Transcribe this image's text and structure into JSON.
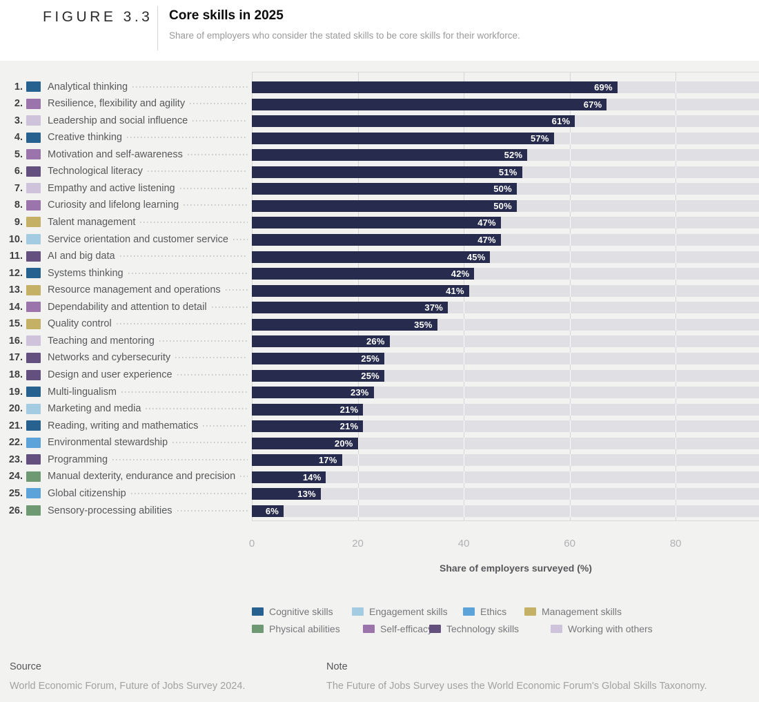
{
  "header": {
    "figure_label": "FIGURE 3.3",
    "title": "Core skills in 2025",
    "subtitle": "Share of employers who consider the stated skills to be core skills for their workforce."
  },
  "chart_data": {
    "type": "bar",
    "orientation": "horizontal",
    "title": "Core skills in 2025",
    "xlabel": "Share of employers surveyed (%)",
    "xlim": [
      0,
      95.7
    ],
    "xticks": [
      0,
      20,
      40,
      60,
      80
    ],
    "grid": true,
    "bar_color": "#272c4f",
    "track_color": "#e0dfe3",
    "value_suffix": "%",
    "items": [
      {
        "rank": "1.",
        "label": "Analytical thinking",
        "category": "Cognitive skills",
        "value": 69
      },
      {
        "rank": "2.",
        "label": "Resilience, flexibility and agility",
        "category": "Self-efficacy",
        "value": 67
      },
      {
        "rank": "3.",
        "label": "Leadership and social influence",
        "category": "Working with others",
        "value": 61
      },
      {
        "rank": "4.",
        "label": "Creative thinking",
        "category": "Cognitive skills",
        "value": 57
      },
      {
        "rank": "5.",
        "label": "Motivation and self-awareness",
        "category": "Self-efficacy",
        "value": 52
      },
      {
        "rank": "6.",
        "label": "Technological literacy",
        "category": "Technology skills",
        "value": 51
      },
      {
        "rank": "7.",
        "label": "Empathy and active listening",
        "category": "Working with others",
        "value": 50
      },
      {
        "rank": "8.",
        "label": "Curiosity and lifelong learning",
        "category": "Self-efficacy",
        "value": 50
      },
      {
        "rank": "9.",
        "label": "Talent management",
        "category": "Management skills",
        "value": 47
      },
      {
        "rank": "10.",
        "label": "Service orientation and customer service",
        "category": "Engagement skills",
        "value": 47
      },
      {
        "rank": "11.",
        "label": "AI and big data",
        "category": "Technology skills",
        "value": 45
      },
      {
        "rank": "12.",
        "label": "Systems thinking",
        "category": "Cognitive skills",
        "value": 42
      },
      {
        "rank": "13.",
        "label": "Resource management and operations",
        "category": "Management skills",
        "value": 41
      },
      {
        "rank": "14.",
        "label": "Dependability and attention to detail",
        "category": "Self-efficacy",
        "value": 37
      },
      {
        "rank": "15.",
        "label": "Quality control",
        "category": "Management skills",
        "value": 35
      },
      {
        "rank": "16.",
        "label": "Teaching and mentoring",
        "category": "Working with others",
        "value": 26
      },
      {
        "rank": "17.",
        "label": "Networks and cybersecurity",
        "category": "Technology skills",
        "value": 25
      },
      {
        "rank": "18.",
        "label": "Design and user experience",
        "category": "Technology skills",
        "value": 25
      },
      {
        "rank": "19.",
        "label": "Multi-lingualism",
        "category": "Cognitive skills",
        "value": 23
      },
      {
        "rank": "20.",
        "label": "Marketing and media",
        "category": "Engagement skills",
        "value": 21
      },
      {
        "rank": "21.",
        "label": "Reading, writing and mathematics",
        "category": "Cognitive skills",
        "value": 21
      },
      {
        "rank": "22.",
        "label": "Environmental stewardship",
        "category": "Ethics",
        "value": 20
      },
      {
        "rank": "23.",
        "label": "Programming",
        "category": "Technology skills",
        "value": 17
      },
      {
        "rank": "24.",
        "label": "Manual dexterity, endurance and precision",
        "category": "Physical abilities",
        "value": 14
      },
      {
        "rank": "25.",
        "label": "Global citizenship",
        "category": "Ethics",
        "value": 13
      },
      {
        "rank": "26.",
        "label": "Sensory-processing abilities",
        "category": "Physical abilities",
        "value": 6
      }
    ],
    "legend": [
      {
        "label": "Cognitive skills",
        "color": "#26618f"
      },
      {
        "label": "Engagement skills",
        "color": "#a3cce3"
      },
      {
        "label": "Ethics",
        "color": "#5ba3d9"
      },
      {
        "label": "Management skills",
        "color": "#c5b166"
      },
      {
        "label": "Physical abilities",
        "color": "#6f9972"
      },
      {
        "label": "Self-efficacy",
        "color": "#9b74ab"
      },
      {
        "label": "Technology skills",
        "color": "#63507f"
      },
      {
        "label": "Working with others",
        "color": "#cfc3dc"
      }
    ],
    "legend_position": "bottom"
  },
  "footer": {
    "source_label": "Source",
    "source_text": "World Economic Forum, Future of Jobs Survey 2024.",
    "note_label": "Note",
    "note_text": "The Future of Jobs Survey uses the World Economic Forum's Global Skills Taxonomy."
  }
}
